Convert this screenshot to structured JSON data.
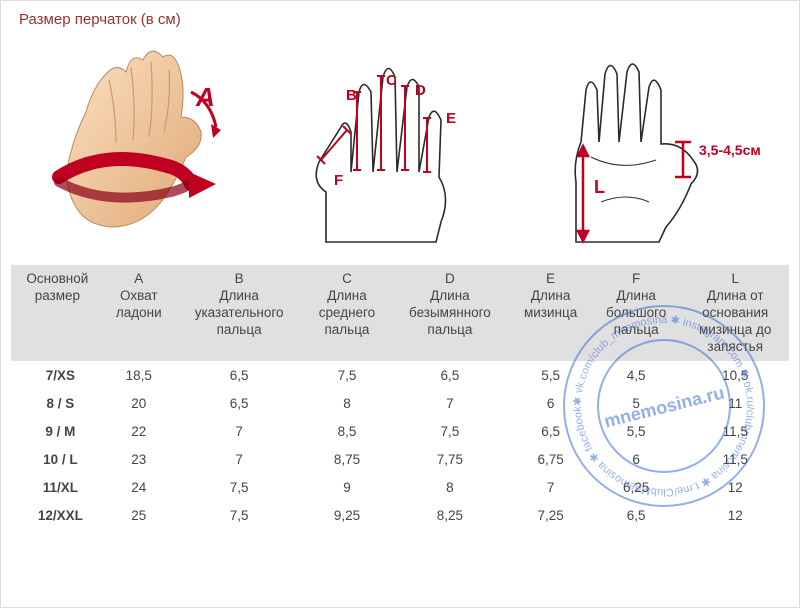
{
  "title": "Размер перчаток (в см)",
  "diagram": {
    "label_A": "A",
    "label_B": "B",
    "label_C": "C",
    "label_D": "D",
    "label_E": "E",
    "label_F": "F",
    "label_L": "L",
    "thumb_range": "3,5-4,5см",
    "colors": {
      "measure": "#c00020",
      "hand_fill": "#f4cda6",
      "outline": "#2b2b2b",
      "arrow_dark": "#8a0014"
    }
  },
  "table": {
    "columns": [
      {
        "key": "size",
        "header_l1": "Основной",
        "header_l2": "размер"
      },
      {
        "key": "A",
        "header_l1": "A",
        "header_l2": "Охват",
        "header_l3": "ладони"
      },
      {
        "key": "B",
        "header_l1": "B",
        "header_l2": "Длина",
        "header_l3": "указательного",
        "header_l4": "пальца"
      },
      {
        "key": "C",
        "header_l1": "C",
        "header_l2": "Длина",
        "header_l3": "среднего",
        "header_l4": "пальца"
      },
      {
        "key": "D",
        "header_l1": "D",
        "header_l2": "Длина",
        "header_l3": "безымянного",
        "header_l4": "пальца"
      },
      {
        "key": "E",
        "header_l1": "E",
        "header_l2": "Длина",
        "header_l3": "мизинца"
      },
      {
        "key": "F",
        "header_l1": "F",
        "header_l2": "Длина",
        "header_l3": "большого",
        "header_l4": "пальца"
      },
      {
        "key": "L",
        "header_l1": "L",
        "header_l2": "Длина от",
        "header_l3": "основания",
        "header_l4": "мизинца до",
        "header_l5": "запястья"
      }
    ],
    "rows": [
      {
        "size": "7/XS",
        "A": "18,5",
        "B": "6,5",
        "C": "7,5",
        "D": "6,5",
        "E": "5,5",
        "F": "4,5",
        "L": "10,5"
      },
      {
        "size": "8 / S",
        "A": "20",
        "B": "6,5",
        "C": "8",
        "D": "7",
        "E": "6",
        "F": "5",
        "L": "11"
      },
      {
        "size": "9 / M",
        "A": "22",
        "B": "7",
        "C": "8,5",
        "D": "7,5",
        "E": "6,5",
        "F": "5,5",
        "L": "11,5"
      },
      {
        "size": "10 / L",
        "A": "23",
        "B": "7",
        "C": "8,75",
        "D": "7,75",
        "E": "6,75",
        "F": "6",
        "L": "11,5"
      },
      {
        "size": "11/XL",
        "A": "24",
        "B": "7,5",
        "C": "9",
        "D": "8",
        "E": "7",
        "F": "6,25",
        "L": "12"
      },
      {
        "size": "12/XXL",
        "A": "25",
        "B": "7,5",
        "C": "9,25",
        "D": "8,25",
        "E": "7,25",
        "F": "6,5",
        "L": "12"
      }
    ]
  },
  "watermark": {
    "center_text": "mnemosina.ru",
    "ring_items": [
      "vk.com/club_mnemosina",
      "instagram.com",
      "ok.ru/clubmnemosina",
      "t.me/ClubMnemosina",
      "facebook.com/ClubMnemosina"
    ],
    "stamp_color": "#3a6fd8"
  }
}
